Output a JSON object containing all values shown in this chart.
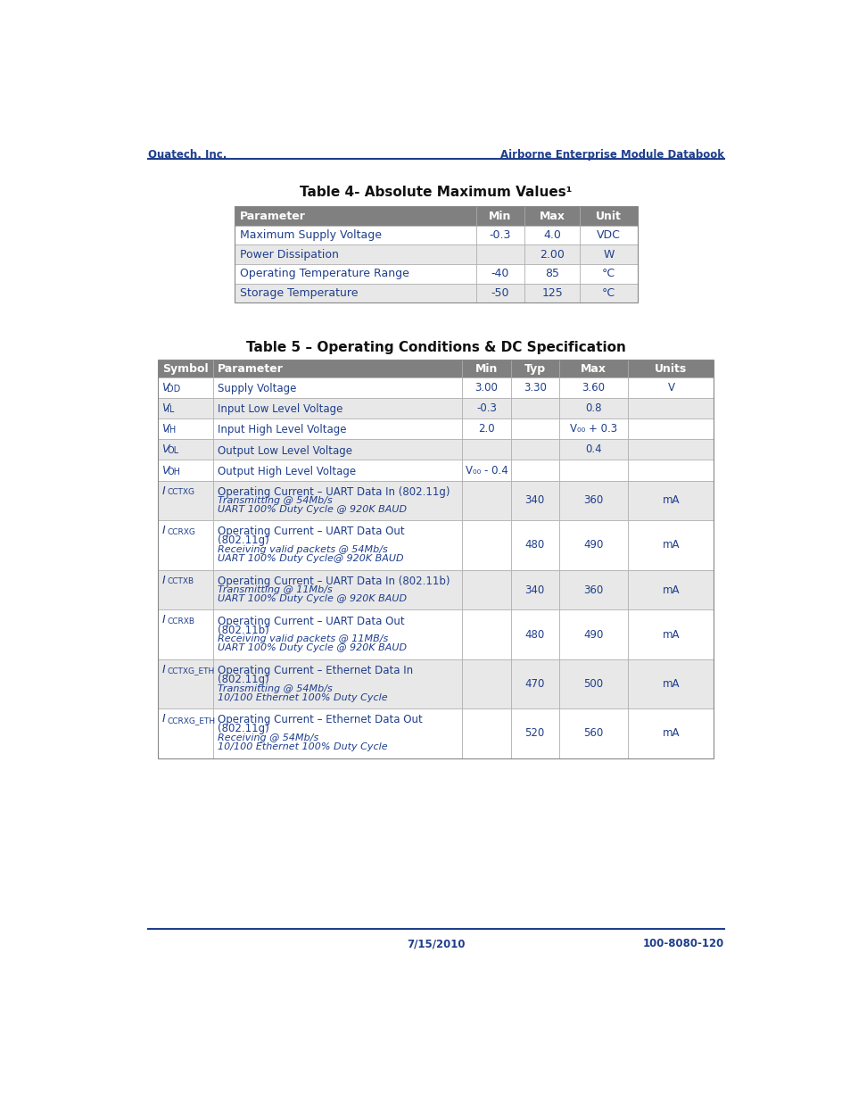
{
  "page_bg": "#ffffff",
  "header_left": "Quatech, Inc.",
  "header_right": "Airborne Enterprise Module Databook",
  "footer_date": "7/15/2010",
  "footer_doc": "100-8080-120",
  "table1_title": "Table 4- Absolute Maximum Values¹",
  "table1_header": [
    "Parameter",
    "Min",
    "Max",
    "Unit"
  ],
  "table1_rows": [
    [
      "Maximum Supply Voltage",
      "-0.3",
      "4.0",
      "VDC"
    ],
    [
      "Power Dissipation",
      "",
      "2.00",
      "W"
    ],
    [
      "Operating Temperature Range",
      "-40",
      "85",
      "°C"
    ],
    [
      "Storage Temperature",
      "-50",
      "125",
      "°C"
    ]
  ],
  "table2_title": "Table 5 – Operating Conditions & DC Specification",
  "table2_header": [
    "Symbol",
    "Parameter",
    "Min",
    "Typ",
    "Max",
    "Units"
  ],
  "table2_rows": [
    {
      "sym_letter": "V",
      "sym_sub": "DD",
      "parameter": "Supply Voltage",
      "min": "3.00",
      "typ": "3.30",
      "max": "3.60",
      "units": "V",
      "note": ""
    },
    {
      "sym_letter": "V",
      "sym_sub": "IL",
      "parameter": "Input Low Level Voltage",
      "min": "-0.3",
      "typ": "",
      "max": "0.8",
      "units": "",
      "note": ""
    },
    {
      "sym_letter": "V",
      "sym_sub": "IH",
      "parameter": "Input High Level Voltage",
      "min": "2.0",
      "typ": "",
      "max": "V₀₀ + 0.3",
      "units": "",
      "note": ""
    },
    {
      "sym_letter": "V",
      "sym_sub": "OL",
      "parameter": "Output Low Level Voltage",
      "min": "",
      "typ": "",
      "max": "0.4",
      "units": "",
      "note": ""
    },
    {
      "sym_letter": "V",
      "sym_sub": "OH",
      "parameter": "Output High Level Voltage",
      "min": "V₀₀ - 0.4",
      "typ": "",
      "max": "",
      "units": "",
      "note": ""
    },
    {
      "sym_letter": "I",
      "sym_sub": "CCTXG",
      "parameter": "Operating Current – UART Data In (802.11g)",
      "min": "",
      "typ": "340",
      "max": "360",
      "units": "mA",
      "note": "Transmitting @ 54Mb/s\nUART 100% Duty Cycle @ 920K BAUD"
    },
    {
      "sym_letter": "I",
      "sym_sub": "CCRXG",
      "parameter": "Operating Current – UART Data Out\n(802.11g)",
      "min": "",
      "typ": "480",
      "max": "490",
      "units": "mA",
      "note": "Receiving valid packets @ 54Mb/s\nUART 100% Duty Cycle@ 920K BAUD"
    },
    {
      "sym_letter": "I",
      "sym_sub": "CCTXB",
      "parameter": "Operating Current – UART Data In (802.11b)",
      "min": "",
      "typ": "340",
      "max": "360",
      "units": "mA",
      "note": "Transmitting @ 11Mb/s\nUART 100% Duty Cycle @ 920K BAUD"
    },
    {
      "sym_letter": "I",
      "sym_sub": "CCRXB",
      "parameter": "Operating Current – UART Data Out\n(802.11b)",
      "min": "",
      "typ": "480",
      "max": "490",
      "units": "mA",
      "note": "Receiving valid packets @ 11MB/s\nUART 100% Duty Cycle @ 920K BAUD"
    },
    {
      "sym_letter": "I",
      "sym_sub": "CCTXG_ETH",
      "parameter": "Operating Current – Ethernet Data In\n(802.11g)",
      "min": "",
      "typ": "470",
      "max": "500",
      "units": "mA",
      "note": "Transmitting @ 54Mb/s\n10/100 Ethernet 100% Duty Cycle"
    },
    {
      "sym_letter": "I",
      "sym_sub": "CCRXG_ETH",
      "parameter": "Operating Current – Ethernet Data Out\n(802.11g)",
      "min": "",
      "typ": "520",
      "max": "560",
      "units": "mA",
      "note": "Receiving @ 54Mb/s\n10/100 Ethernet 100% Duty Cycle"
    }
  ],
  "dark_blue": "#404040",
  "hdr_bg": "#808080",
  "text_blue": "#1F3E8C",
  "alt_row": "#E8E8E8",
  "cell_text": "#1F3E8C",
  "border_color": "#aaaaaa"
}
